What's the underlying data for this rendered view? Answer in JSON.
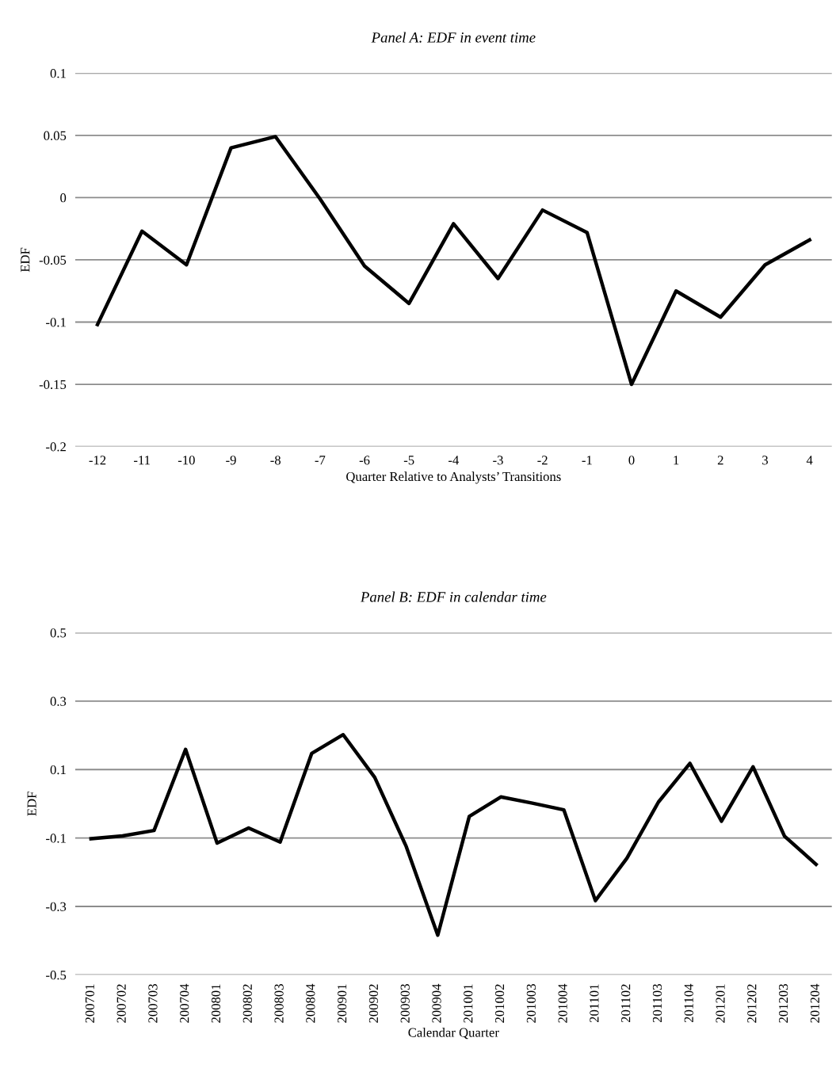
{
  "chart_data": [
    {
      "type": "line",
      "title": "Panel A: EDF in event time",
      "xlabel": "Quarter Relative to Analysts’ Transitions",
      "ylabel": "EDF",
      "categories": [
        "-12",
        "-11",
        "-10",
        "-9",
        "-8",
        "-7",
        "-6",
        "-5",
        "-4",
        "-3",
        "-2",
        "-1",
        "0",
        "1",
        "2",
        "3",
        "4"
      ],
      "series": [
        {
          "color": "#000000",
          "values": [
            -0.102,
            -0.027,
            -0.054,
            0.04,
            0.049,
            -0.001,
            -0.055,
            -0.085,
            -0.021,
            -0.065,
            -0.01,
            -0.028,
            -0.15,
            -0.075,
            -0.096,
            -0.054,
            -0.034
          ]
        }
      ],
      "ylim": [
        -0.2,
        0.1
      ],
      "yticks": [
        {
          "value": -0.2,
          "label": "-0.2"
        },
        {
          "value": -0.15,
          "label": "-0.15"
        },
        {
          "value": -0.1,
          "label": "-0.1"
        },
        {
          "value": -0.05,
          "label": "-0.05"
        },
        {
          "value": 0,
          "label": "0"
        },
        {
          "value": 0.05,
          "label": "0.05"
        },
        {
          "value": 0.1,
          "label": "0.1"
        }
      ],
      "grid": "y",
      "marker": "none",
      "line_style": "solid"
    },
    {
      "type": "line",
      "title": "Panel B: EDF in calendar time",
      "xlabel": "Calendar Quarter",
      "ylabel": "EDF",
      "categories": [
        "200701",
        "200702",
        "200703",
        "200704",
        "200801",
        "200802",
        "200803",
        "200804",
        "200901",
        "200902",
        "200903",
        "200904",
        "201001",
        "201002",
        "201003",
        "201004",
        "201101",
        "201102",
        "201103",
        "201104",
        "201201",
        "201202",
        "201203",
        "201204"
      ],
      "series": [
        {
          "color": "#000000",
          "values": [
            -0.102,
            -0.094,
            -0.078,
            0.159,
            -0.115,
            -0.071,
            -0.112,
            0.147,
            0.202,
            0.077,
            -0.125,
            -0.384,
            -0.037,
            0.02,
            0.002,
            -0.018,
            -0.283,
            -0.159,
            0.005,
            0.118,
            -0.051,
            0.108,
            -0.095,
            -0.177
          ]
        }
      ],
      "ylim": [
        -0.5,
        0.5
      ],
      "yticks": [
        {
          "value": -0.5,
          "label": "-0.5"
        },
        {
          "value": -0.3,
          "label": "-0.3"
        },
        {
          "value": -0.1,
          "label": "-0.1"
        },
        {
          "value": 0.1,
          "label": "0.1"
        },
        {
          "value": 0.3,
          "label": "0.3"
        },
        {
          "value": 0.5,
          "label": "0.5"
        }
      ],
      "grid": "y",
      "marker": "none",
      "line_style": "solid"
    }
  ]
}
